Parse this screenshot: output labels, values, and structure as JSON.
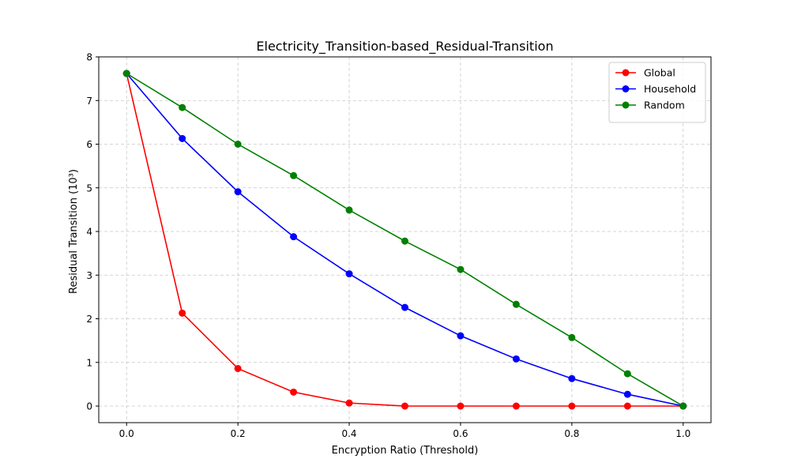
{
  "chart_data": {
    "type": "line",
    "title": "Electricity_Transition-based_Residual-Transition",
    "xlabel": "Encryption Ratio (Threshold)",
    "ylabel": "Residual Transition (10³)",
    "xlim": [
      -0.05,
      1.05
    ],
    "ylim": [
      -0.38,
      8.0
    ],
    "x_ticks": [
      0.0,
      0.2,
      0.4,
      0.6,
      0.8,
      1.0
    ],
    "x_tick_labels": [
      "0.0",
      "0.2",
      "0.4",
      "0.6",
      "0.8",
      "1.0"
    ],
    "y_ticks": [
      0,
      1,
      2,
      3,
      4,
      5,
      6,
      7,
      8
    ],
    "y_tick_labels": [
      "0",
      "1",
      "2",
      "3",
      "4",
      "5",
      "6",
      "7",
      "8"
    ],
    "grid": true,
    "legend_position": "top-right",
    "x": [
      0.0,
      0.1,
      0.2,
      0.3,
      0.4,
      0.5,
      0.6,
      0.7,
      0.8,
      0.9,
      1.0
    ],
    "series": [
      {
        "name": "Global",
        "color": "#ff0000",
        "values": [
          7.62,
          2.13,
          0.86,
          0.32,
          0.07,
          0.0,
          0.0,
          0.0,
          0.0,
          0.0,
          0.0
        ]
      },
      {
        "name": "Household",
        "color": "#0000ff",
        "values": [
          7.62,
          6.13,
          4.91,
          3.88,
          3.03,
          2.26,
          1.61,
          1.08,
          0.63,
          0.27,
          0.0
        ]
      },
      {
        "name": "Random",
        "color": "#008000",
        "values": [
          7.62,
          6.84,
          6.0,
          5.28,
          4.49,
          3.78,
          3.13,
          2.33,
          1.57,
          0.74,
          0.0
        ]
      }
    ]
  }
}
